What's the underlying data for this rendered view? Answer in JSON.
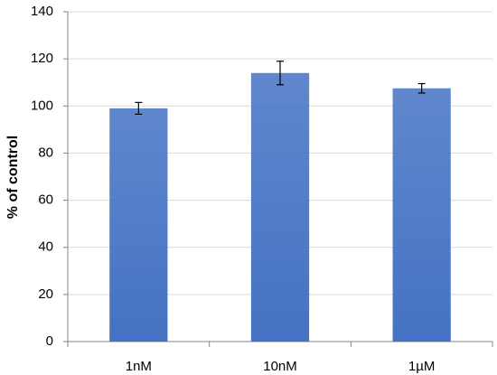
{
  "chart_data": {
    "type": "bar",
    "y_label": "% of control",
    "categories": [
      "1nM",
      "10nM",
      "1µM"
    ],
    "values": [
      99,
      114,
      107.5
    ],
    "errors": [
      2.5,
      5,
      2
    ],
    "color": "#4472c4",
    "ylim": [
      0,
      140
    ],
    "yticks": [
      0,
      20,
      40,
      60,
      80,
      100,
      120,
      140
    ],
    "grid": true
  }
}
